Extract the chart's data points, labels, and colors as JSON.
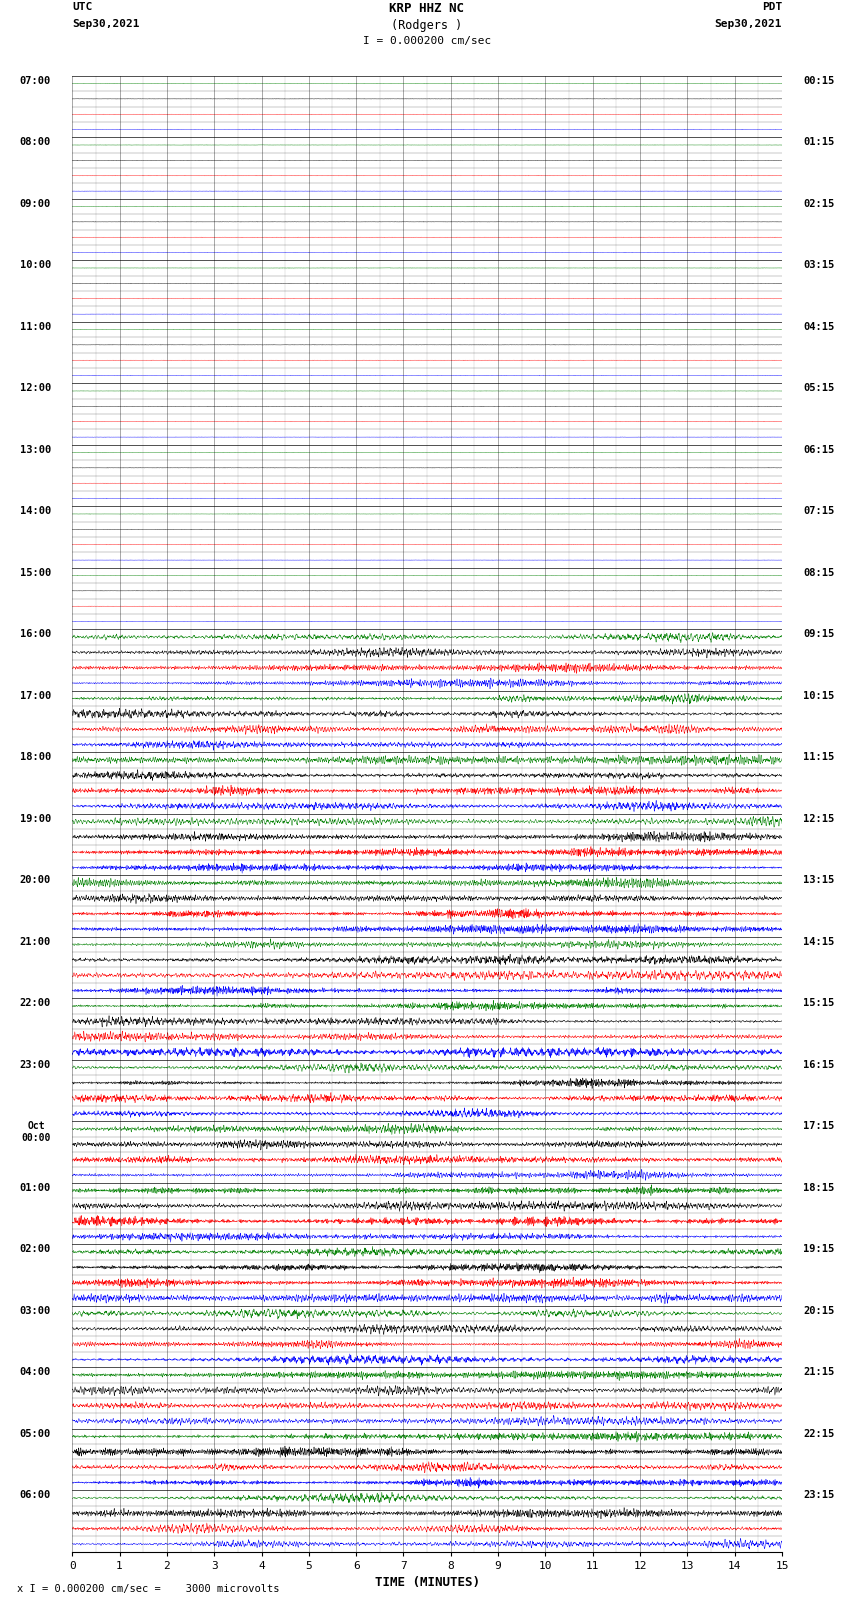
{
  "title_line1": "KRP HHZ NC",
  "title_line2": "(Rodgers )",
  "scale_label": "I = 0.000200 cm/sec",
  "utc_label": "UTC\nSep30,2021",
  "pdt_label": "PDT\nSep30,2021",
  "bottom_note": "x I = 0.000200 cm/sec =    3000 microvolts",
  "xlabel": "TIME (MINUTES)",
  "left_times_utc": [
    "07:00",
    "08:00",
    "09:00",
    "10:00",
    "11:00",
    "12:00",
    "13:00",
    "14:00",
    "15:00",
    "16:00",
    "17:00",
    "18:00",
    "19:00",
    "20:00",
    "21:00",
    "22:00",
    "23:00",
    "Oct\n00:00",
    "01:00",
    "02:00",
    "03:00",
    "04:00",
    "05:00",
    "06:00"
  ],
  "right_times_pdt": [
    "00:15",
    "01:15",
    "02:15",
    "03:15",
    "04:15",
    "05:15",
    "06:15",
    "07:15",
    "08:15",
    "09:15",
    "10:15",
    "11:15",
    "12:15",
    "13:15",
    "14:15",
    "15:15",
    "16:15",
    "17:15",
    "18:15",
    "19:15",
    "20:15",
    "21:15",
    "22:15",
    "23:15"
  ],
  "n_hours": 24,
  "traces_per_hour": 4,
  "n_quiet_hours": 9,
  "row_colors": [
    "green",
    "black",
    "red",
    "blue"
  ],
  "row_colors_active": [
    "green",
    "black",
    "red",
    "blue"
  ],
  "bg_color": "white",
  "trace_amplitude_quiet": 0.04,
  "trace_amplitude_active": 0.42,
  "x_ticks": [
    0,
    1,
    2,
    3,
    4,
    5,
    6,
    7,
    8,
    9,
    10,
    11,
    12,
    13,
    14,
    15
  ],
  "minutes_per_row": 15,
  "seed": 42,
  "n_points": 4500
}
